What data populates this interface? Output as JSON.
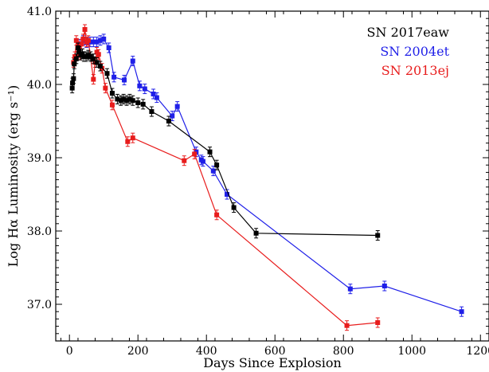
{
  "chart_data": {
    "type": "line",
    "xlabel": "Days Since Explosion",
    "ylabel": "Log Hα Luminosity (erg s⁻¹)",
    "xlim": [
      -40,
      1225
    ],
    "ylim": [
      36.5,
      41.0
    ],
    "xticks": [
      0,
      200,
      400,
      600,
      800,
      1000,
      1200
    ],
    "yticks": [
      37.0,
      38.0,
      39.0,
      40.0,
      41.0
    ],
    "ytick_labels": [
      "37.0",
      "38.0",
      "39.0",
      "40.0",
      "41.0"
    ],
    "legend_position": "top-right",
    "series": [
      {
        "name": "SN 2017eaw",
        "color": "#000000",
        "x": [
          8,
          9,
          12,
          14,
          20,
          25,
          28,
          33,
          38,
          42,
          48,
          55,
          62,
          70,
          80,
          90,
          110,
          125,
          140,
          150,
          158,
          167,
          176,
          185,
          200,
          215,
          240,
          290,
          410,
          430,
          480,
          545,
          900
        ],
        "y": [
          39.95,
          40.02,
          40.08,
          40.28,
          40.35,
          40.5,
          40.45,
          40.4,
          40.42,
          40.38,
          40.38,
          40.4,
          40.38,
          40.35,
          40.3,
          40.25,
          40.15,
          39.88,
          39.8,
          39.78,
          39.8,
          39.78,
          39.8,
          39.78,
          39.75,
          39.73,
          39.63,
          39.5,
          39.08,
          38.9,
          38.32,
          37.97,
          37.94
        ]
      },
      {
        "name": "SN 2004et",
        "color": "#1f1fe8",
        "x": [
          30,
          40,
          50,
          60,
          70,
          80,
          90,
          100,
          115,
          130,
          160,
          185,
          205,
          220,
          245,
          255,
          300,
          315,
          370,
          385,
          390,
          420,
          460,
          820,
          920,
          1145
        ],
        "y": [
          40.55,
          40.6,
          40.57,
          40.58,
          40.58,
          40.58,
          40.6,
          40.62,
          40.5,
          40.1,
          40.06,
          40.32,
          39.98,
          39.94,
          39.87,
          39.82,
          39.57,
          39.7,
          39.08,
          38.97,
          38.95,
          38.82,
          38.5,
          37.21,
          37.25,
          36.9
        ]
      },
      {
        "name": "SN 2013ej",
        "color": "#e81c1c",
        "x": [
          12,
          16,
          20,
          25,
          30,
          35,
          40,
          45,
          50,
          55,
          70,
          75,
          80,
          85,
          95,
          105,
          125,
          170,
          185,
          335,
          365,
          430,
          810,
          900
        ],
        "y": [
          40.3,
          40.38,
          40.6,
          40.52,
          40.4,
          40.55,
          40.62,
          40.75,
          40.58,
          40.6,
          40.07,
          40.3,
          40.44,
          40.41,
          40.22,
          39.95,
          39.72,
          39.22,
          39.27,
          38.96,
          39.05,
          38.22,
          36.71,
          36.75
        ]
      }
    ]
  }
}
